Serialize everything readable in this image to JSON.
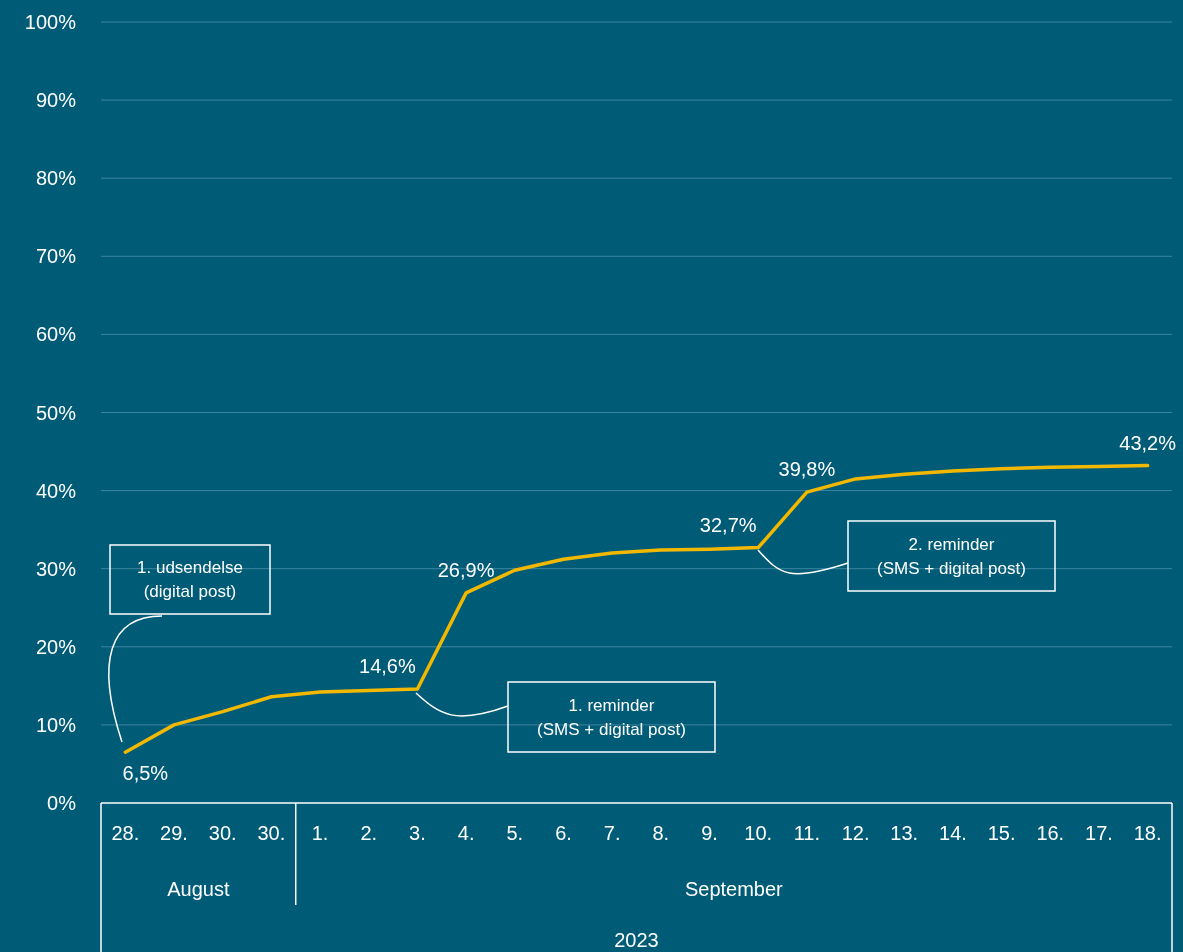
{
  "chart_data": {
    "type": "line",
    "xlabel": "2023",
    "categories": [
      "28.",
      "29.",
      "30.",
      "30.",
      "1.",
      "2.",
      "3.",
      "4.",
      "5.",
      "6.",
      "7.",
      "8.",
      "9.",
      "10.",
      "11.",
      "12.",
      "13.",
      "14.",
      "15.",
      "16.",
      "17.",
      "18."
    ],
    "series": [
      {
        "color": "#f2b800",
        "values": [
          6.5,
          10.0,
          11.7,
          13.6,
          14.2,
          14.4,
          14.6,
          26.9,
          29.8,
          31.2,
          32.0,
          32.4,
          32.5,
          32.7,
          39.8,
          41.5,
          42.1,
          42.5,
          42.8,
          43.0,
          43.1,
          43.2
        ],
        "value_labels": [
          "6,5%",
          null,
          null,
          null,
          null,
          null,
          "14,6%",
          "26,9%",
          null,
          null,
          null,
          null,
          null,
          "32,7%",
          "39,8%",
          null,
          null,
          null,
          null,
          null,
          null,
          "43,2%"
        ]
      }
    ],
    "ylim": [
      0,
      100
    ],
    "yticks": [
      {
        "value": 0,
        "label": "0%"
      },
      {
        "value": 10,
        "label": "10%"
      },
      {
        "value": 20,
        "label": "20%"
      },
      {
        "value": 30,
        "label": "30%"
      },
      {
        "value": 40,
        "label": "40%"
      },
      {
        "value": 50,
        "label": "50%"
      },
      {
        "value": 60,
        "label": "60%"
      },
      {
        "value": 70,
        "label": "70%"
      },
      {
        "value": 80,
        "label": "80%"
      },
      {
        "value": 90,
        "label": "90%"
      },
      {
        "value": 100,
        "label": "100%"
      }
    ],
    "grid": "y",
    "marker": "none",
    "line_style": "solid",
    "annotations": [
      "1. udsendelse\n(digital post)",
      "1. reminder\n(SMS + digital post)",
      "2. reminder\n(SMS + digital post)",
      "August",
      "September"
    ]
  }
}
